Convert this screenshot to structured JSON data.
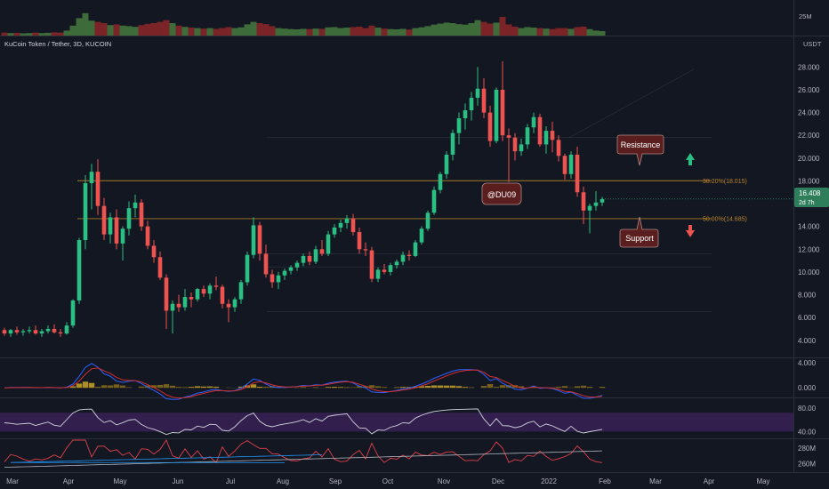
{
  "header": {
    "title": "KuCoin Token / Tether, 3D, KUCOIN",
    "currency": "USDT",
    "volume_axis_label": "25M"
  },
  "price": {
    "last": "16.408",
    "countdown": "2d 7h",
    "last_value": 16.408
  },
  "annotations": {
    "resistance": "Resistance",
    "support": "Support",
    "author": "@DU09",
    "up_arrow": "arrow-up-icon",
    "down_arrow": "arrow-down-icon"
  },
  "fib_levels": [
    {
      "label": "",
      "value": 21.8,
      "color": "#787b86"
    },
    {
      "label": "38.20%(18.015)",
      "value": 18.015,
      "color": "#b8832a"
    },
    {
      "label": "50.00%(14.685)",
      "value": 14.685,
      "color": "#b8832a"
    },
    {
      "label": "",
      "value": 11.6,
      "color": "#787b86"
    },
    {
      "label": "",
      "value": 10.45,
      "color": "#787b86"
    },
    {
      "label": "",
      "value": 6.5,
      "color": "#787b86"
    }
  ],
  "colors": {
    "background": "#131722",
    "up": "#26a69a",
    "up_bright": "#2bbf83",
    "down": "#ef5350",
    "fib": "#b8832a",
    "macd_line": "#2962ff",
    "signal_line": "#d32f2f",
    "hist": "#c9a227",
    "rsi_line": "#d1d4dc",
    "rsi_band": "#5b2a86"
  },
  "axes": {
    "price_ticks": [
      "28.000",
      "26.000",
      "24.000",
      "22.000",
      "20.000",
      "18.000",
      "16.000",
      "14.000",
      "12.000",
      "10.000",
      "8.000",
      "6.000",
      "4.000"
    ],
    "macd_ticks": [
      "4.000",
      "0.000"
    ],
    "rsi_ticks": [
      "80.00",
      "40.00"
    ],
    "third_ticks": [
      "280M",
      "260M"
    ],
    "x_ticks": [
      "Mar",
      "Apr",
      "May",
      "Jun",
      "Jul",
      "Aug",
      "Sep",
      "Oct",
      "Nov",
      "Dec",
      "2022",
      "Feb",
      "Mar",
      "Apr",
      "May"
    ]
  },
  "chart_data": {
    "type": "candlestick",
    "symbol": "KCS/USDT",
    "interval": "3D",
    "ylim": [
      3.2,
      29.2
    ],
    "price_tick_values": [
      28,
      26,
      24,
      22,
      20,
      18,
      16,
      14,
      12,
      10,
      8,
      6,
      4
    ],
    "ohlc": [
      [
        4.9,
        5.1,
        4.4,
        4.6
      ],
      [
        4.6,
        5.0,
        4.3,
        4.9
      ],
      [
        4.9,
        5.2,
        4.5,
        4.7
      ],
      [
        4.7,
        5.0,
        4.4,
        4.8
      ],
      [
        4.8,
        5.2,
        4.6,
        4.9
      ],
      [
        4.9,
        5.3,
        4.5,
        4.6
      ],
      [
        4.6,
        5.0,
        4.3,
        4.8
      ],
      [
        4.8,
        5.3,
        4.6,
        5.0
      ],
      [
        5.0,
        5.4,
        4.6,
        4.7
      ],
      [
        4.7,
        5.0,
        4.3,
        4.6
      ],
      [
        4.6,
        5.6,
        4.5,
        5.3
      ],
      [
        5.3,
        7.6,
        5.1,
        7.5
      ],
      [
        7.5,
        13.0,
        7.2,
        12.8
      ],
      [
        12.8,
        18.5,
        12.0,
        17.8
      ],
      [
        17.8,
        19.5,
        15.5,
        18.8
      ],
      [
        18.8,
        19.9,
        15.0,
        15.8
      ],
      [
        15.8,
        16.5,
        12.8,
        13.3
      ],
      [
        13.3,
        15.2,
        12.5,
        14.8
      ],
      [
        14.8,
        15.5,
        12.0,
        12.5
      ],
      [
        12.5,
        14.0,
        11.0,
        13.8
      ],
      [
        13.8,
        16.2,
        13.2,
        15.6
      ],
      [
        15.6,
        16.8,
        14.8,
        16.1
      ],
      [
        16.1,
        16.4,
        13.6,
        14.0
      ],
      [
        14.0,
        14.5,
        12.0,
        12.3
      ],
      [
        12.3,
        12.8,
        10.8,
        11.3
      ],
      [
        11.3,
        11.8,
        9.3,
        9.5
      ],
      [
        9.5,
        9.8,
        5.0,
        6.6
      ],
      [
        6.6,
        7.5,
        4.6,
        7.2
      ],
      [
        7.2,
        8.0,
        6.5,
        6.9
      ],
      [
        6.9,
        8.5,
        6.6,
        7.8
      ],
      [
        7.8,
        8.2,
        6.9,
        7.6
      ],
      [
        7.6,
        8.6,
        7.4,
        8.5
      ],
      [
        8.5,
        8.8,
        7.8,
        8.1
      ],
      [
        8.1,
        9.0,
        7.6,
        8.8
      ],
      [
        8.8,
        9.6,
        8.4,
        8.7
      ],
      [
        8.7,
        8.9,
        6.8,
        7.2
      ],
      [
        7.2,
        7.6,
        5.6,
        6.9
      ],
      [
        6.9,
        7.8,
        6.5,
        7.6
      ],
      [
        7.6,
        9.3,
        7.2,
        9.1
      ],
      [
        9.1,
        11.8,
        8.8,
        11.5
      ],
      [
        11.5,
        14.8,
        11.2,
        14.1
      ],
      [
        14.1,
        14.4,
        11.0,
        11.6
      ],
      [
        11.6,
        12.4,
        9.5,
        9.8
      ],
      [
        9.8,
        10.2,
        8.6,
        9.1
      ],
      [
        9.1,
        10.0,
        8.5,
        9.7
      ],
      [
        9.7,
        10.3,
        9.3,
        10.1
      ],
      [
        10.1,
        10.6,
        9.8,
        10.4
      ],
      [
        10.4,
        11.0,
        10.1,
        10.8
      ],
      [
        10.8,
        11.6,
        10.5,
        11.4
      ],
      [
        11.4,
        11.8,
        10.6,
        10.9
      ],
      [
        10.9,
        12.3,
        10.7,
        12.0
      ],
      [
        12.0,
        12.8,
        11.4,
        11.6
      ],
      [
        11.6,
        13.6,
        11.4,
        13.3
      ],
      [
        13.3,
        14.2,
        13.0,
        13.9
      ],
      [
        13.9,
        14.6,
        13.5,
        14.3
      ],
      [
        14.3,
        15.0,
        13.8,
        14.7
      ],
      [
        14.7,
        15.1,
        13.2,
        13.5
      ],
      [
        13.5,
        13.9,
        11.6,
        12.0
      ],
      [
        12.0,
        12.6,
        11.4,
        11.9
      ],
      [
        11.9,
        12.2,
        9.1,
        9.4
      ],
      [
        9.4,
        10.4,
        9.1,
        10.2
      ],
      [
        10.2,
        10.7,
        9.8,
        10.0
      ],
      [
        10.0,
        10.8,
        9.7,
        10.6
      ],
      [
        10.6,
        11.1,
        10.3,
        10.9
      ],
      [
        10.9,
        11.8,
        10.6,
        11.5
      ],
      [
        11.5,
        11.9,
        11.0,
        11.4
      ],
      [
        11.4,
        12.8,
        11.3,
        12.6
      ],
      [
        12.6,
        14.0,
        12.4,
        13.8
      ],
      [
        13.8,
        15.4,
        13.6,
        15.2
      ],
      [
        15.2,
        17.5,
        15.0,
        17.2
      ],
      [
        17.2,
        18.8,
        16.9,
        18.6
      ],
      [
        18.6,
        20.6,
        18.2,
        20.3
      ],
      [
        20.3,
        22.5,
        19.8,
        22.2
      ],
      [
        22.2,
        24.0,
        21.2,
        23.5
      ],
      [
        23.5,
        24.8,
        22.5,
        24.2
      ],
      [
        24.2,
        25.8,
        23.3,
        25.3
      ],
      [
        25.3,
        28.0,
        24.6,
        26.1
      ],
      [
        26.1,
        27.0,
        23.5,
        24.0
      ],
      [
        24.0,
        24.6,
        21.0,
        21.5
      ],
      [
        21.5,
        26.2,
        21.3,
        26.0
      ],
      [
        26.0,
        28.5,
        21.5,
        22.0
      ],
      [
        22.0,
        22.6,
        17.9,
        21.8
      ],
      [
        21.8,
        22.2,
        19.8,
        20.6
      ],
      [
        20.6,
        21.7,
        20.2,
        21.2
      ],
      [
        21.2,
        23.0,
        20.8,
        22.7
      ],
      [
        22.7,
        24.0,
        22.2,
        23.6
      ],
      [
        23.6,
        23.9,
        21.0,
        21.2
      ],
      [
        21.2,
        22.8,
        20.4,
        22.4
      ],
      [
        22.4,
        23.2,
        20.5,
        21.6
      ],
      [
        21.6,
        22.0,
        19.7,
        20.2
      ],
      [
        20.2,
        20.4,
        18.1,
        18.6
      ],
      [
        18.6,
        20.6,
        18.2,
        20.3
      ],
      [
        20.3,
        21.0,
        16.6,
        17.0
      ],
      [
        17.0,
        17.5,
        14.2,
        15.4
      ],
      [
        15.4,
        16.0,
        13.4,
        15.8
      ],
      [
        15.8,
        17.1,
        15.4,
        16.1
      ],
      [
        16.1,
        16.6,
        15.8,
        16.4
      ]
    ],
    "volume_scale": "relative_0_to_1",
    "volume": [
      0.12,
      0.1,
      0.11,
      0.09,
      0.1,
      0.12,
      0.1,
      0.11,
      0.13,
      0.12,
      0.2,
      0.4,
      0.7,
      0.9,
      0.6,
      0.55,
      0.5,
      0.42,
      0.45,
      0.4,
      0.38,
      0.35,
      0.42,
      0.47,
      0.5,
      0.55,
      0.62,
      0.5,
      0.4,
      0.35,
      0.32,
      0.3,
      0.28,
      0.3,
      0.27,
      0.3,
      0.34,
      0.3,
      0.33,
      0.45,
      0.55,
      0.5,
      0.46,
      0.38,
      0.3,
      0.28,
      0.26,
      0.25,
      0.27,
      0.26,
      0.28,
      0.27,
      0.33,
      0.34,
      0.3,
      0.32,
      0.34,
      0.36,
      0.3,
      0.4,
      0.32,
      0.28,
      0.26,
      0.25,
      0.27,
      0.24,
      0.3,
      0.33,
      0.38,
      0.44,
      0.48,
      0.52,
      0.5,
      0.46,
      0.44,
      0.5,
      0.62,
      0.55,
      0.48,
      0.52,
      0.75,
      0.45,
      0.36,
      0.3,
      0.34,
      0.32,
      0.3,
      0.28,
      0.26,
      0.3,
      0.3,
      0.27,
      0.34,
      0.36,
      0.26,
      0.2,
      0.18
    ],
    "macd": {
      "ylim": [
        -1.4,
        4.6
      ],
      "ticks": [
        4,
        0
      ]
    },
    "rsi": {
      "ylim": [
        30,
        95
      ],
      "band": [
        40,
        72
      ],
      "ticks": [
        80,
        40
      ]
    },
    "third_pane": {
      "ticks": [
        280,
        260
      ],
      "unit": "M"
    }
  }
}
